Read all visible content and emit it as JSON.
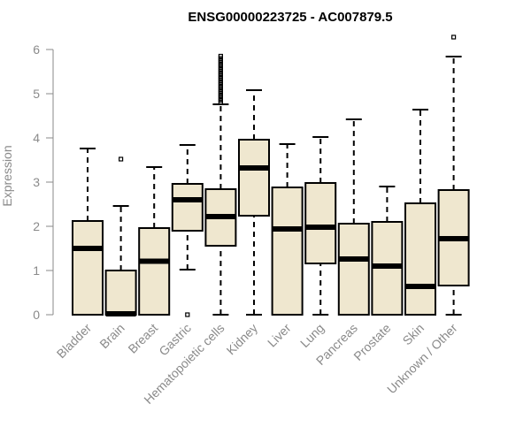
{
  "chart_data": {
    "type": "box",
    "title": "ENSG00000223725 - AC007879.5",
    "xlabel": "",
    "ylabel": "Expression",
    "ylim": [
      0,
      6.2
    ],
    "yticks": [
      0,
      1,
      2,
      3,
      4,
      5,
      6
    ],
    "box_color": "#efe7cf",
    "categories": [
      "Bladder",
      "Brain",
      "Breast",
      "Gastric",
      "Hematopoietic cells",
      "Kidney",
      "Liver",
      "Lung",
      "Pancreas",
      "Prostate",
      "Skin",
      "Unknown / Other"
    ],
    "boxes": [
      {
        "min": 0,
        "q1": 0,
        "median": 1.5,
        "q3": 2.12,
        "max": 3.76,
        "outliers": []
      },
      {
        "min": 0,
        "q1": 0,
        "median": 0.02,
        "q3": 1.0,
        "max": 2.46,
        "outliers": [
          3.52
        ]
      },
      {
        "min": 0,
        "q1": 0,
        "median": 1.21,
        "q3": 1.96,
        "max": 3.34,
        "outliers": []
      },
      {
        "min": 1.02,
        "q1": 1.9,
        "median": 2.6,
        "q3": 2.96,
        "max": 3.84,
        "outliers": [
          0
        ]
      },
      {
        "min": 0,
        "q1": 1.56,
        "median": 2.22,
        "q3": 2.84,
        "max": 4.76,
        "outliers": [
          4.8,
          4.85,
          4.9,
          4.95,
          5.0,
          5.05,
          5.1,
          5.15,
          5.2,
          5.25,
          5.3,
          5.35,
          5.4,
          5.45,
          5.5,
          5.55,
          5.6,
          5.65,
          5.7,
          5.75,
          5.8,
          5.85
        ]
      },
      {
        "min": 0,
        "q1": 2.24,
        "median": 3.32,
        "q3": 3.96,
        "max": 5.08,
        "outliers": []
      },
      {
        "min": 0,
        "q1": 0,
        "median": 1.94,
        "q3": 2.88,
        "max": 3.86,
        "outliers": []
      },
      {
        "min": 0,
        "q1": 1.16,
        "median": 1.98,
        "q3": 2.98,
        "max": 4.02,
        "outliers": []
      },
      {
        "min": 0,
        "q1": 0,
        "median": 1.26,
        "q3": 2.06,
        "max": 4.42,
        "outliers": []
      },
      {
        "min": 0,
        "q1": 0,
        "median": 1.1,
        "q3": 2.1,
        "max": 2.9,
        "outliers": []
      },
      {
        "min": 0,
        "q1": 0,
        "median": 0.64,
        "q3": 2.52,
        "max": 4.64,
        "outliers": []
      },
      {
        "min": 0,
        "q1": 0.66,
        "median": 1.72,
        "q3": 2.82,
        "max": 5.84,
        "outliers": [
          6.28
        ]
      }
    ]
  }
}
